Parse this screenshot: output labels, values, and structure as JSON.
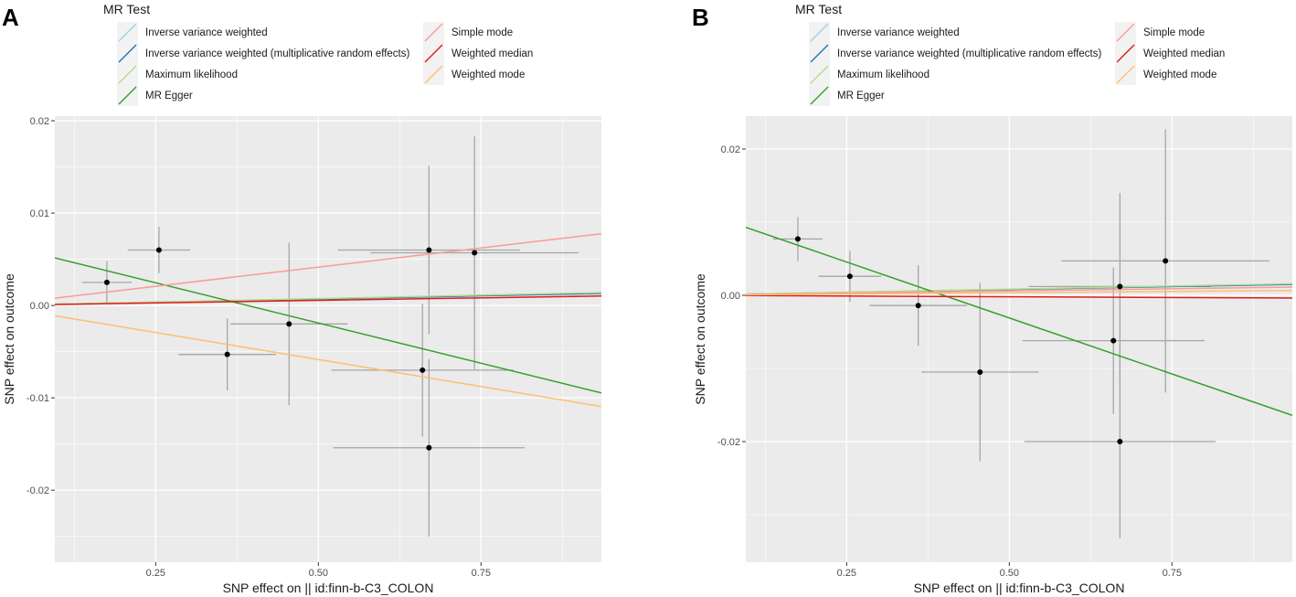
{
  "legend": {
    "title": "MR Test",
    "items": [
      {
        "label": "Inverse variance weighted",
        "color": "#A6CEE3"
      },
      {
        "label": "Inverse variance weighted (multiplicative random effects)",
        "color": "#1F78B4"
      },
      {
        "label": "Maximum likelihood",
        "color": "#B2DF8A"
      },
      {
        "label": "MR Egger",
        "color": "#33A02C"
      },
      {
        "label": "Simple mode",
        "color": "#FB9A99"
      },
      {
        "label": "Weighted median",
        "color": "#E31A1C"
      },
      {
        "label": "Weighted mode",
        "color": "#FDBF6F"
      }
    ]
  },
  "chart_data": [
    {
      "panel": "A",
      "type": "scatter",
      "xlabel": "SNP effect on  || id:finn-b-C3_COLON",
      "ylabel": "SNP effect on outcome",
      "xlim": [
        0.095,
        0.935
      ],
      "ylim": [
        -0.0278,
        0.0205
      ],
      "xticks": [
        0.25,
        0.5,
        0.75
      ],
      "xticklabels": [
        "0.25",
        "0.50",
        "0.75"
      ],
      "yticks": [
        -0.02,
        -0.01,
        0.0,
        0.01,
        0.02
      ],
      "yticklabels": [
        "-0.02",
        "-0.01",
        "0.00",
        "0.01",
        "0.02"
      ],
      "points": [
        {
          "x": 0.175,
          "y": 0.0025,
          "xerr": 0.038,
          "yerr": 0.0023
        },
        {
          "x": 0.255,
          "y": 0.006,
          "xerr": 0.048,
          "yerr": 0.0025
        },
        {
          "x": 0.36,
          "y": -0.0053,
          "xerr": 0.075,
          "yerr": 0.0039
        },
        {
          "x": 0.455,
          "y": -0.002,
          "xerr": 0.09,
          "yerr": 0.0088
        },
        {
          "x": 0.66,
          "y": -0.007,
          "xerr": 0.14,
          "yerr": 0.0072
        },
        {
          "x": 0.67,
          "y": 0.006,
          "xerr": 0.14,
          "yerr": 0.0091
        },
        {
          "x": 0.67,
          "y": -0.0154,
          "xerr": 0.147,
          "yerr": 0.0096
        },
        {
          "x": 0.74,
          "y": 0.0057,
          "xerr": 0.16,
          "yerr": 0.0126
        }
      ],
      "lines": [
        {
          "name": "Inverse variance weighted",
          "intercept": 0.0,
          "slope": 0.0014
        },
        {
          "name": "Inverse variance weighted (multiplicative random effects)",
          "intercept": 0.0,
          "slope": 0.0014
        },
        {
          "name": "Maximum likelihood",
          "intercept": 0.0,
          "slope": 0.0015
        },
        {
          "name": "MR Egger",
          "intercept": 0.0068,
          "slope": -0.0174
        },
        {
          "name": "Simple mode",
          "intercept": 0.0,
          "slope": 0.0083
        },
        {
          "name": "Weighted median",
          "intercept": 0.0,
          "slope": 0.0011
        },
        {
          "name": "Weighted mode",
          "intercept": 0.0,
          "slope": -0.0117
        }
      ]
    },
    {
      "panel": "B",
      "type": "scatter",
      "xlabel": "SNP effect on  || id:finn-b-C3_COLON",
      "ylabel": "SNP effect on outcome",
      "xlim": [
        0.095,
        0.935
      ],
      "ylim": [
        -0.0365,
        0.0245
      ],
      "xticks": [
        0.25,
        0.5,
        0.75
      ],
      "xticklabels": [
        "0.25",
        "0.50",
        "0.75"
      ],
      "yticks": [
        -0.02,
        0.0,
        0.02
      ],
      "yticklabels": [
        "-0.02",
        "0.00",
        "0.02"
      ],
      "points": [
        {
          "x": 0.175,
          "y": 0.0077,
          "xerr": 0.038,
          "yerr": 0.003
        },
        {
          "x": 0.255,
          "y": 0.0026,
          "xerr": 0.048,
          "yerr": 0.0035
        },
        {
          "x": 0.36,
          "y": -0.0014,
          "xerr": 0.075,
          "yerr": 0.0055
        },
        {
          "x": 0.455,
          "y": -0.0105,
          "xerr": 0.09,
          "yerr": 0.0122
        },
        {
          "x": 0.66,
          "y": -0.0062,
          "xerr": 0.14,
          "yerr": 0.01
        },
        {
          "x": 0.67,
          "y": 0.0012,
          "xerr": 0.14,
          "yerr": 0.0128
        },
        {
          "x": 0.67,
          "y": -0.02,
          "xerr": 0.147,
          "yerr": 0.0132
        },
        {
          "x": 0.74,
          "y": 0.0047,
          "xerr": 0.16,
          "yerr": 0.018
        }
      ],
      "lines": [
        {
          "name": "Inverse variance weighted",
          "intercept": 0.0,
          "slope": 0.0016
        },
        {
          "name": "Inverse variance weighted (multiplicative random effects)",
          "intercept": 0.0,
          "slope": 0.0016
        },
        {
          "name": "Maximum likelihood",
          "intercept": 0.0,
          "slope": 0.0017
        },
        {
          "name": "MR Egger",
          "intercept": 0.0122,
          "slope": -0.0306
        },
        {
          "name": "Simple mode",
          "intercept": 0.0,
          "slope": 0.0012
        },
        {
          "name": "Weighted median",
          "intercept": 0.0,
          "slope": -0.0004
        },
        {
          "name": "Weighted mode",
          "intercept": 0.0,
          "slope": 0.0007
        }
      ]
    }
  ]
}
